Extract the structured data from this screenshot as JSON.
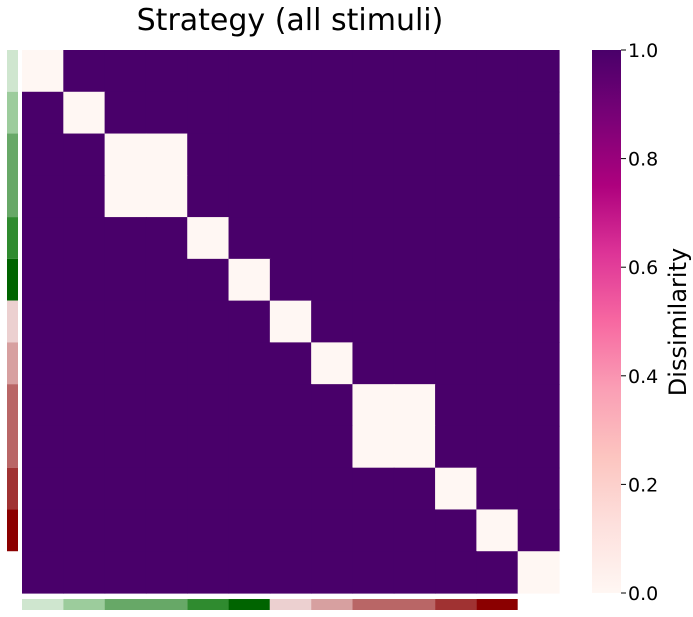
{
  "chart_data": {
    "type": "heatmap",
    "title": "Strategy (all stimuli)",
    "n": 13,
    "groups": [
      {
        "size": 1,
        "color": "#cfe6cf"
      },
      {
        "size": 1,
        "color": "#9ccc9c"
      },
      {
        "size": 2,
        "color": "#67a867"
      },
      {
        "size": 1,
        "color": "#2f8b2f"
      },
      {
        "size": 1,
        "color": "#006400"
      },
      {
        "size": 1,
        "color": "#ecd0d0"
      },
      {
        "size": 1,
        "color": "#d7a0a0"
      },
      {
        "size": 2,
        "color": "#b96666"
      },
      {
        "size": 1,
        "color": "#a03232"
      },
      {
        "size": 1,
        "color": "#8b0000"
      }
    ],
    "within_group_value": 0.0,
    "between_group_value": 1.0,
    "colorbar": {
      "label": "Dissimilarity",
      "vmin": 0.0,
      "vmax": 1.0,
      "ticks": [
        "0.0",
        "0.2",
        "0.4",
        "0.6",
        "0.8",
        "1.0"
      ],
      "colormap": [
        "#fff7f3",
        "#fde0dd",
        "#fcc5c0",
        "#fa9fb5",
        "#f768a1",
        "#dd3497",
        "#ae017e",
        "#7a0177",
        "#49006a"
      ]
    }
  }
}
